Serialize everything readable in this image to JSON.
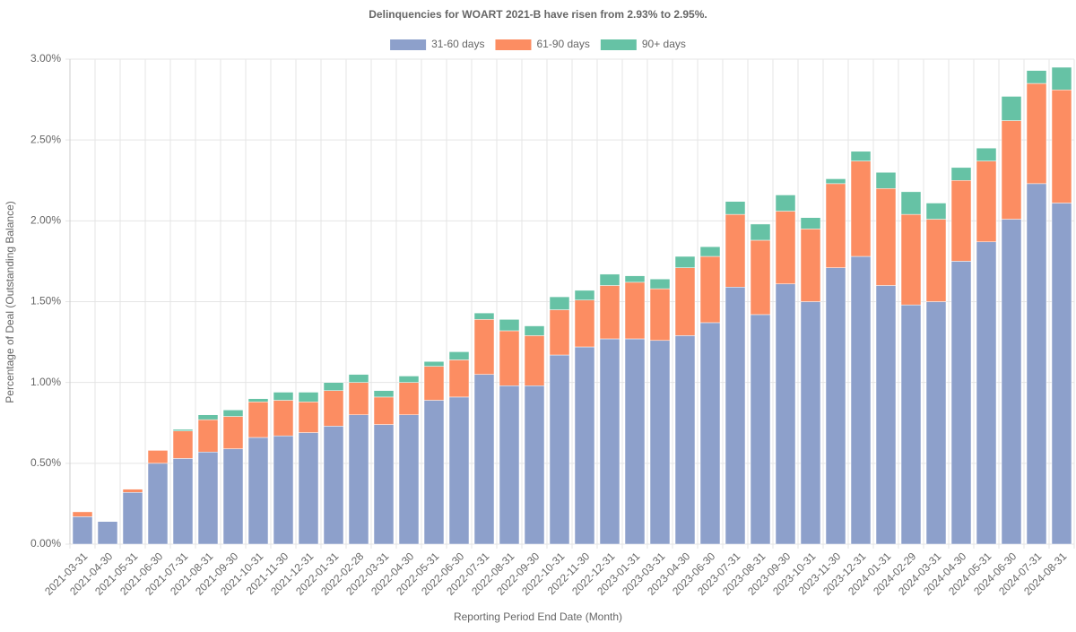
{
  "chart_data": {
    "type": "stacked_bar",
    "title": "Delinquencies for WOART 2021-B have risen from 2.93% to 2.95%.",
    "x_label": "Reporting Period End Date (Month)",
    "y_label": "Percentage of Deal (Outstanding Balance)",
    "categories": [
      "2021-03-31",
      "2021-04-30",
      "2021-05-31",
      "2021-06-30",
      "2021-07-31",
      "2021-08-31",
      "2021-09-30",
      "2021-10-31",
      "2021-11-30",
      "2021-12-31",
      "2022-01-31",
      "2022-02-28",
      "2022-03-31",
      "2022-04-30",
      "2022-05-31",
      "2022-06-30",
      "2022-07-31",
      "2022-08-31",
      "2022-09-30",
      "2022-10-31",
      "2022-11-30",
      "2022-12-31",
      "2023-01-31",
      "2023-03-31",
      "2023-04-30",
      "2023-06-30",
      "2023-07-31",
      "2023-08-31",
      "2023-09-30",
      "2023-10-31",
      "2023-11-30",
      "2023-12-31",
      "2024-01-31",
      "2024-02-29",
      "2024-03-31",
      "2024-04-30",
      "2024-05-31",
      "2024-06-30",
      "2024-07-31",
      "2024-08-31"
    ],
    "series": [
      {
        "name": "31-60 days",
        "color": "#8da0cb",
        "values": [
          0.17,
          0.14,
          0.32,
          0.5,
          0.53,
          0.57,
          0.59,
          0.66,
          0.67,
          0.69,
          0.73,
          0.8,
          0.74,
          0.8,
          0.89,
          0.91,
          1.05,
          0.98,
          0.98,
          1.17,
          1.22,
          1.27,
          1.27,
          1.26,
          1.29,
          1.37,
          1.59,
          1.42,
          1.61,
          1.5,
          1.71,
          1.78,
          1.6,
          1.48,
          1.5,
          1.75,
          1.87,
          2.01,
          2.23,
          2.11
        ]
      },
      {
        "name": "61-90 days",
        "color": "#fc8d62",
        "values": [
          0.03,
          0,
          0.02,
          0.08,
          0.17,
          0.2,
          0.2,
          0.22,
          0.22,
          0.19,
          0.22,
          0.2,
          0.17,
          0.2,
          0.21,
          0.23,
          0.34,
          0.34,
          0.31,
          0.28,
          0.29,
          0.33,
          0.35,
          0.32,
          0.42,
          0.41,
          0.45,
          0.46,
          0.45,
          0.45,
          0.52,
          0.59,
          0.6,
          0.56,
          0.51,
          0.5,
          0.5,
          0.61,
          0.62,
          0.7
        ]
      },
      {
        "name": "90+ days",
        "color": "#66c2a5",
        "values": [
          0,
          0,
          0,
          0,
          0.01,
          0.03,
          0.04,
          0.02,
          0.05,
          0.06,
          0.05,
          0.05,
          0.04,
          0.04,
          0.03,
          0.05,
          0.04,
          0.07,
          0.06,
          0.08,
          0.06,
          0.07,
          0.04,
          0.06,
          0.07,
          0.06,
          0.08,
          0.1,
          0.1,
          0.07,
          0.03,
          0.06,
          0.1,
          0.14,
          0.1,
          0.08,
          0.08,
          0.15,
          0.08,
          0.14
        ]
      }
    ],
    "ylim": [
      0,
      3
    ],
    "yticks": [
      {
        "value": 0,
        "label": "0.00%"
      },
      {
        "value": 0.5,
        "label": "0.50%"
      },
      {
        "value": 1,
        "label": "1.00%"
      },
      {
        "value": 1.5,
        "label": "1.50%"
      },
      {
        "value": 2,
        "label": "2.00%"
      },
      {
        "value": 2.5,
        "label": "2.50%"
      },
      {
        "value": 3,
        "label": "3.00%"
      }
    ],
    "grid": true
  }
}
